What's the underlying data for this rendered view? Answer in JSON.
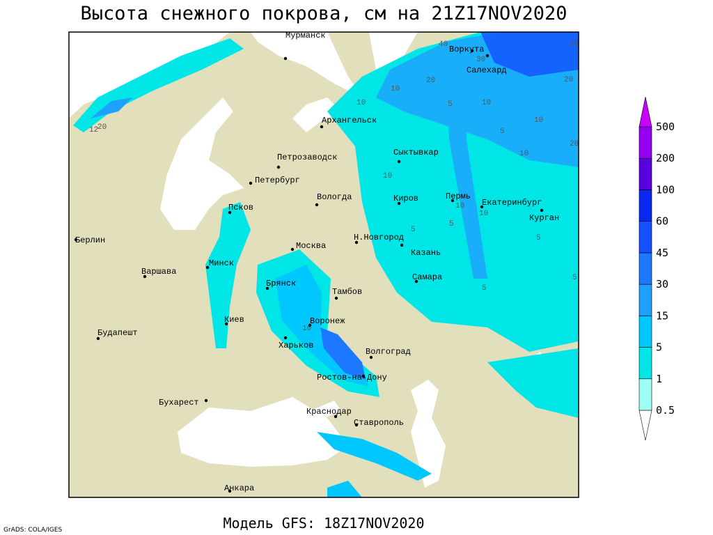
{
  "title": "Высота снежного покрова, см на 21Z17NOV2020",
  "footer": "Модель GFS: 18Z17NOV2020",
  "credit": "GrADS: COLA/IGES",
  "cities": [
    "Мурманск",
    "Воркута",
    "Салехард",
    "Архангельск",
    "Сыктывкар",
    "Петрозаводск",
    "Петербург",
    "Вологда",
    "Киров",
    "Пермь",
    "Екатеринбург",
    "Курган",
    "Псков",
    "Н.Новгород",
    "Москва",
    "Казань",
    "Берлин",
    "Минск",
    "Варшава",
    "Самара",
    "Брянск",
    "Тамбов",
    "Киев",
    "Воронеж",
    "Будапешт",
    "Харьков",
    "Волгоград",
    "Ростов-на-Дону",
    "Бухарест",
    "Краснодар",
    "Ставрополь",
    "Анкара"
  ],
  "contour_labels": [
    40,
    30,
    30,
    20,
    10,
    20,
    10,
    5,
    10,
    10,
    5,
    20,
    10,
    10,
    10,
    10,
    5,
    5,
    5,
    5,
    5,
    10,
    12,
    20
  ],
  "colorbar": {
    "levels": [
      0.5,
      1,
      5,
      15,
      30,
      45,
      60,
      100,
      200,
      500
    ],
    "colors": [
      "#ffffff",
      "#a0fff5",
      "#00e6e6",
      "#00c8ff",
      "#1ea0ff",
      "#1e78ff",
      "#1450ff",
      "#0a28f0",
      "#5a00dc",
      "#9600f0",
      "#c800ff"
    ]
  }
}
